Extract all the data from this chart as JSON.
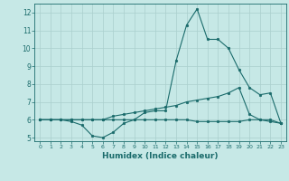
{
  "xlabel": "Humidex (Indice chaleur)",
  "ylabel": "",
  "xlim": [
    -0.5,
    23.5
  ],
  "ylim": [
    4.8,
    12.5
  ],
  "yticks": [
    5,
    6,
    7,
    8,
    9,
    10,
    11,
    12
  ],
  "xticks": [
    0,
    1,
    2,
    3,
    4,
    5,
    6,
    7,
    8,
    9,
    10,
    11,
    12,
    13,
    14,
    15,
    16,
    17,
    18,
    19,
    20,
    21,
    22,
    23
  ],
  "background_color": "#c6e8e6",
  "grid_color": "#aacfcd",
  "line_color": "#1a6b6b",
  "series": [
    [
      6.0,
      6.0,
      6.0,
      5.9,
      5.7,
      5.1,
      5.0,
      5.3,
      5.8,
      6.0,
      6.4,
      6.5,
      6.5,
      9.3,
      11.3,
      12.2,
      10.5,
      10.5,
      10.0,
      8.8,
      7.8,
      7.4,
      7.5,
      5.8
    ],
    [
      6.0,
      6.0,
      6.0,
      6.0,
      6.0,
      6.0,
      6.0,
      6.2,
      6.3,
      6.4,
      6.5,
      6.6,
      6.7,
      6.8,
      7.0,
      7.1,
      7.2,
      7.3,
      7.5,
      7.8,
      6.3,
      6.0,
      6.0,
      5.8
    ],
    [
      6.0,
      6.0,
      6.0,
      6.0,
      6.0,
      6.0,
      6.0,
      6.0,
      6.0,
      6.0,
      6.0,
      6.0,
      6.0,
      6.0,
      6.0,
      5.9,
      5.9,
      5.9,
      5.9,
      5.9,
      6.0,
      6.0,
      5.9,
      5.8
    ]
  ]
}
